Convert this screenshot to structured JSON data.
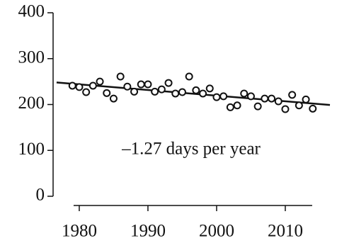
{
  "chart_data": {
    "type": "scatter",
    "x": [
      1979,
      1980,
      1981,
      1982,
      1983,
      1984,
      1985,
      1986,
      1987,
      1988,
      1989,
      1990,
      1991,
      1992,
      1993,
      1994,
      1995,
      1996,
      1997,
      1998,
      1999,
      2000,
      2001,
      2002,
      2003,
      2004,
      2005,
      2006,
      2007,
      2008,
      2009,
      2010,
      2011,
      2012,
      2013,
      2014
    ],
    "values": [
      241,
      238,
      227,
      241,
      250,
      225,
      213,
      261,
      239,
      228,
      244,
      244,
      228,
      233,
      247,
      224,
      227,
      261,
      231,
      224,
      235,
      216,
      218,
      194,
      198,
      224,
      218,
      196,
      213,
      213,
      207,
      190,
      221,
      198,
      211,
      191
    ],
    "color": "#111111",
    "trend": {
      "x": [
        1976.7,
        2016.5
      ],
      "y": [
        248,
        199
      ]
    },
    "annotation": "–1.27 days per year",
    "xlim": [
      1976.5,
      2016.5
    ],
    "ylim": [
      0,
      400
    ],
    "xticks": [
      1980,
      1990,
      2000,
      2010
    ],
    "yticks": [
      0,
      100,
      200,
      300,
      400
    ]
  }
}
